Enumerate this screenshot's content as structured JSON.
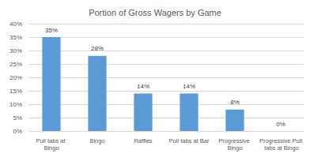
{
  "chart_data": {
    "type": "bar",
    "title": "Portion of Gross Wagers by Game",
    "categories": [
      "Pull tabs at Bingo",
      "Bingo",
      "Raffles",
      "Pull tabs at Bar",
      "Progressive Bingo",
      "Progressive Pull tabs at Bingo"
    ],
    "values": [
      35,
      28,
      14,
      14,
      8,
      0
    ],
    "value_labels": [
      "35%",
      "28%",
      "14%",
      "14%",
      "8%",
      "0%"
    ],
    "data_labels": true,
    "color": "#5b9bd5",
    "ylim": [
      0,
      40
    ],
    "yticks": [
      {
        "value": 0,
        "label": "0%"
      },
      {
        "value": 5,
        "label": "5%"
      },
      {
        "value": 10,
        "label": "10%"
      },
      {
        "value": 15,
        "label": "15%"
      },
      {
        "value": 20,
        "label": "20%"
      },
      {
        "value": 25,
        "label": "25%"
      },
      {
        "value": 30,
        "label": "30%"
      },
      {
        "value": 35,
        "label": "35%"
      },
      {
        "value": 40,
        "label": "40%"
      }
    ],
    "grid": true
  }
}
